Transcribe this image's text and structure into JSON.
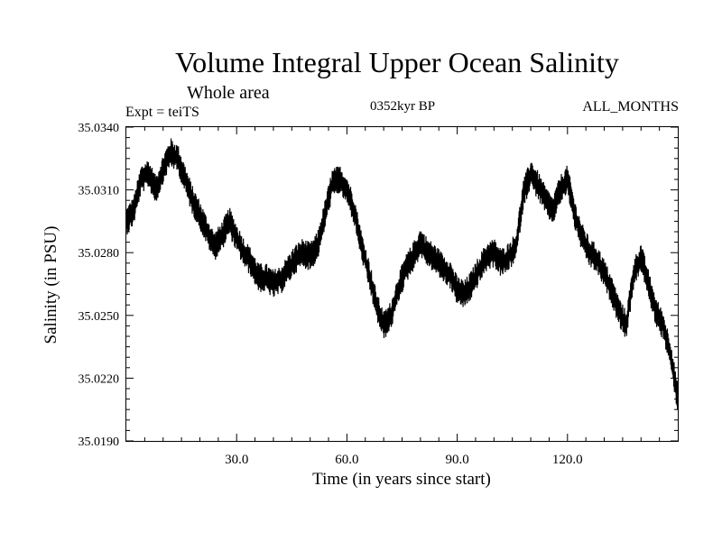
{
  "chart_data": {
    "type": "line",
    "title": "Volume Integral Upper Ocean Salinity",
    "subtitle": "Whole area",
    "experiment": "Expt = teiTS",
    "period": "0352kyr BP",
    "months": "ALL_MONTHS",
    "xlabel": "Time (in years since start)",
    "ylabel": "Salinity (in PSU)",
    "xlim": [
      0,
      150
    ],
    "ylim": [
      35.019,
      35.034
    ],
    "x_ticks": [
      30,
      60,
      90,
      120
    ],
    "x_tick_labels": [
      "30.0",
      "60.0",
      "90.0",
      "120.0"
    ],
    "y_ticks": [
      35.019,
      35.022,
      35.025,
      35.028,
      35.031,
      35.034
    ],
    "y_tick_labels": [
      "35.0190",
      "35.0220",
      "35.0250",
      "35.0280",
      "35.0310",
      "35.0340"
    ],
    "series": [
      {
        "name": "salinity",
        "color": "#000000",
        "x": [
          0,
          2,
          4,
          6,
          8,
          10,
          12,
          14,
          16,
          18,
          20,
          22,
          24,
          26,
          28,
          30,
          32,
          34,
          36,
          38,
          40,
          42,
          44,
          46,
          48,
          50,
          52,
          54,
          56,
          58,
          60,
          62,
          64,
          66,
          68,
          70,
          72,
          74,
          76,
          78,
          80,
          82,
          84,
          86,
          88,
          90,
          92,
          94,
          96,
          98,
          100,
          102,
          104,
          106,
          108,
          110,
          112,
          114,
          116,
          118,
          120,
          122,
          124,
          126,
          128,
          130,
          132,
          134,
          136,
          138,
          140,
          142,
          144,
          146,
          148,
          150
        ],
        "values": [
          35.0295,
          35.03,
          35.0315,
          35.0318,
          35.031,
          35.032,
          35.0328,
          35.0325,
          35.0315,
          35.0305,
          35.0298,
          35.029,
          35.0283,
          35.0288,
          35.0295,
          35.0287,
          35.028,
          35.0275,
          35.0268,
          35.0268,
          35.0265,
          35.0267,
          35.0272,
          35.0277,
          35.028,
          35.0278,
          35.0283,
          35.0298,
          35.0313,
          35.0315,
          35.031,
          35.03,
          35.0283,
          35.027,
          35.0255,
          35.0245,
          35.025,
          35.0263,
          35.0272,
          35.0278,
          35.0285,
          35.028,
          35.0277,
          35.0273,
          35.027,
          35.0262,
          35.026,
          35.0265,
          35.0272,
          35.0278,
          35.028,
          35.0275,
          35.0278,
          35.0283,
          35.0308,
          35.0318,
          35.0312,
          35.0305,
          35.03,
          35.031,
          35.0315,
          35.0298,
          35.0287,
          35.028,
          35.0277,
          35.027,
          35.0262,
          35.0252,
          35.0245,
          35.027,
          35.0278,
          35.0265,
          35.0252,
          35.0245,
          35.0232,
          35.021
        ],
        "band_half_width": 0.0007
      }
    ]
  }
}
